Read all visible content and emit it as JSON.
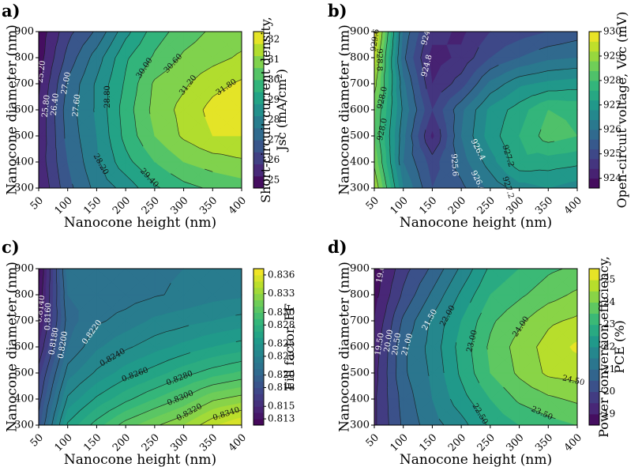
{
  "chart_data": [
    {
      "type": "contour",
      "panel": "a)",
      "xlabel": "Nanocone height (nm)",
      "ylabel": "Nanocone diameter (nm)",
      "x": [
        50,
        100,
        150,
        200,
        250,
        300,
        350,
        400
      ],
      "y": [
        300,
        400,
        500,
        600,
        700,
        800,
        900
      ],
      "xticks": [
        "50",
        "100",
        "150",
        "200",
        "250",
        "300",
        "350",
        "400"
      ],
      "yticks": [
        "300",
        "400",
        "500",
        "600",
        "700",
        "800",
        "900"
      ],
      "xlim": [
        50,
        400
      ],
      "ylim": [
        300,
        900
      ],
      "z": [
        [
          25.2,
          25.4,
          25.3,
          25.3,
          25.1,
          24.9,
          24.8
        ],
        [
          26.8,
          27.0,
          27.2,
          27.3,
          27.1,
          26.6,
          26.2
        ],
        [
          27.8,
          28.1,
          28.2,
          28.3,
          28.3,
          27.9,
          27.1
        ],
        [
          28.4,
          29.2,
          29.6,
          29.7,
          29.5,
          29.3,
          28.6
        ],
        [
          29.3,
          30.0,
          30.6,
          30.8,
          30.7,
          30.1,
          29.7
        ],
        [
          29.8,
          30.6,
          31.3,
          31.4,
          31.1,
          30.7,
          30.3
        ],
        [
          30.1,
          30.9,
          31.8,
          32.0,
          31.6,
          31.0,
          30.7
        ],
        [
          30.3,
          31.1,
          31.8,
          32.3,
          31.9,
          31.3,
          30.9
        ]
      ],
      "levels": [
        24.6,
        25.2,
        25.8,
        26.4,
        27.0,
        27.6,
        28.2,
        28.8,
        29.4,
        30.0,
        30.6,
        31.2,
        31.8,
        32.4
      ],
      "zmin": 24.6,
      "zmax": 32.4,
      "contour_labels": [
        "25.20",
        "25.80",
        "26.40",
        "27.00",
        "27.60",
        "28.20",
        "28.80",
        "29.40",
        "30.00",
        "30.60",
        "31.20",
        "31.80"
      ],
      "colorbar": {
        "label": "Short-circuit current density, Jsc (mA/cm²)",
        "label_lines": [
          "Short-circuit current density,",
          "Jsc (mA/cm²)"
        ],
        "ticks": [
          "25",
          "26",
          "27",
          "28",
          "29",
          "30",
          "31",
          "32"
        ],
        "tick_values": [
          25,
          26,
          27,
          28,
          29,
          30,
          31,
          32
        ]
      }
    },
    {
      "type": "contour",
      "panel": "b)",
      "xlabel": "Nanocone height (nm)",
      "ylabel": "Nanocone diameter (nm)",
      "x": [
        50,
        100,
        150,
        200,
        250,
        300,
        350,
        400
      ],
      "y": [
        300,
        400,
        500,
        600,
        700,
        800,
        900
      ],
      "xticks": [
        "50",
        "100",
        "150",
        "200",
        "250",
        "300",
        "350",
        "400"
      ],
      "yticks": [
        "300",
        "400",
        "500",
        "600",
        "700",
        "800",
        "900"
      ],
      "xlim": [
        50,
        400
      ],
      "ylim": [
        300,
        900
      ],
      "z": [
        [
          929.2,
          928.7,
          928.4,
          928.5,
          929.0,
          929.4,
          929.9
        ],
        [
          926.4,
          926.0,
          926.1,
          926.3,
          926.1,
          925.7,
          925.9
        ],
        [
          925.2,
          925.0,
          924.3,
          924.8,
          924.4,
          924.2,
          924.6
        ],
        [
          925.5,
          925.8,
          926.0,
          925.9,
          925.0,
          924.5,
          924.3
        ],
        [
          926.1,
          926.6,
          927.0,
          926.9,
          926.1,
          925.2,
          924.8
        ],
        [
          926.6,
          927.5,
          927.6,
          927.4,
          926.7,
          925.6,
          925.0
        ],
        [
          926.8,
          927.4,
          928.2,
          928.0,
          926.9,
          925.9,
          925.2
        ],
        [
          926.6,
          927.3,
          928.0,
          927.9,
          927.0,
          926.0,
          925.4
        ]
      ],
      "levels": [
        923.6,
        924.0,
        924.4,
        924.8,
        925.2,
        925.6,
        926.0,
        926.4,
        926.8,
        927.2,
        927.6,
        928.0,
        928.4,
        928.8,
        929.2,
        929.6,
        930.0
      ],
      "zmin": 923.6,
      "zmax": 930.0,
      "contour_labels": [
        "924.8",
        "924.8",
        "925.6",
        "926.4",
        "926.4",
        "927.2",
        "927.2",
        "928.0",
        "928.0",
        "928.8",
        "929.6",
        "925.6"
      ],
      "colorbar": {
        "label": "Open-circuit voltage, Voc (mV)",
        "label_lines": [
          "Open-circuit voltage, Voc (mV)"
        ],
        "ticks": [
          "924",
          "925",
          "926",
          "927",
          "928",
          "929",
          "930"
        ],
        "tick_values": [
          924,
          925,
          926,
          927,
          928,
          929,
          930
        ]
      }
    },
    {
      "type": "contour",
      "panel": "c)",
      "xlabel": "Nanocone height (nm)",
      "ylabel": "Nanocone diameter (nm)",
      "x": [
        50,
        100,
        150,
        200,
        250,
        300,
        350,
        400
      ],
      "y": [
        300,
        400,
        500,
        600,
        700,
        800,
        900
      ],
      "xticks": [
        "50",
        "100",
        "150",
        "200",
        "250",
        "300",
        "350",
        "400"
      ],
      "yticks": [
        "300",
        "400",
        "500",
        "600",
        "700",
        "800",
        "900"
      ],
      "xlim": [
        50,
        400
      ],
      "ylim": [
        300,
        900
      ],
      "z": [
        [
          0.8185,
          0.8175,
          0.8165,
          0.815,
          0.8138,
          0.813,
          0.8125
        ],
        [
          0.8262,
          0.8242,
          0.8225,
          0.821,
          0.8205,
          0.821,
          0.8215
        ],
        [
          0.8285,
          0.8262,
          0.8242,
          0.8228,
          0.8218,
          0.8213,
          0.8215
        ],
        [
          0.8305,
          0.8277,
          0.8255,
          0.8238,
          0.8224,
          0.8215,
          0.8215
        ],
        [
          0.8318,
          0.829,
          0.8265,
          0.8246,
          0.8232,
          0.8219,
          0.8218
        ],
        [
          0.833,
          0.8302,
          0.8276,
          0.8253,
          0.8236,
          0.8222,
          0.822
        ],
        [
          0.8348,
          0.8318,
          0.8285,
          0.826,
          0.824,
          0.8226,
          0.8222
        ],
        [
          0.836,
          0.8325,
          0.8292,
          0.8265,
          0.8244,
          0.8228,
          0.8225
        ]
      ],
      "levels": [
        0.812,
        0.813,
        0.814,
        0.815,
        0.816,
        0.817,
        0.818,
        0.819,
        0.82,
        0.821,
        0.822,
        0.823,
        0.824,
        0.825,
        0.826,
        0.827,
        0.828,
        0.829,
        0.83,
        0.831,
        0.832,
        0.833,
        0.834,
        0.835,
        0.836,
        0.837
      ],
      "zmin": 0.812,
      "zmax": 0.837,
      "contour_labels": [
        "0.8140",
        "0.8160",
        "0.8180",
        "0.8200",
        "0.8220",
        "0.8240",
        "0.8260",
        "0.8280",
        "0.8300",
        "0.8320",
        "0.8340"
      ],
      "colorbar": {
        "label": "Fill factor, FF",
        "label_lines": [
          "Fill factor, FF"
        ],
        "ticks": [
          "0.813",
          "0.815",
          "0.818",
          "0.820",
          "0.823",
          "0.825",
          "0.828",
          "0.830",
          "0.833",
          "0.836"
        ],
        "tick_values": [
          0.813,
          0.815,
          0.818,
          0.82,
          0.823,
          0.825,
          0.828,
          0.83,
          0.833,
          0.836
        ]
      }
    },
    {
      "type": "contour",
      "panel": "d)",
      "xlabel": "Nanocone height (nm)",
      "ylabel": "Nanocone diameter (nm)",
      "x": [
        50,
        100,
        150,
        200,
        250,
        300,
        350,
        400
      ],
      "y": [
        300,
        400,
        500,
        600,
        700,
        800,
        900
      ],
      "xticks": [
        "50",
        "100",
        "150",
        "200",
        "250",
        "300",
        "350",
        "400"
      ],
      "yticks": [
        "300",
        "400",
        "500",
        "600",
        "700",
        "800",
        "900"
      ],
      "xlim": [
        50,
        400
      ],
      "ylim": [
        300,
        900
      ],
      "z": [
        [
          19.4,
          19.4,
          19.3,
          19.2,
          19.0,
          18.8,
          18.7
        ],
        [
          20.6,
          20.7,
          20.9,
          20.9,
          20.6,
          20.1,
          19.8
        ],
        [
          21.3,
          21.5,
          21.6,
          21.7,
          21.6,
          21.1,
          20.6
        ],
        [
          21.8,
          22.3,
          22.6,
          22.7,
          22.5,
          22.1,
          21.6
        ],
        [
          22.6,
          23.0,
          23.5,
          23.6,
          23.4,
          23.0,
          22.6
        ],
        [
          23.0,
          23.6,
          24.1,
          24.2,
          23.9,
          23.4,
          23.0
        ],
        [
          23.3,
          23.9,
          24.6,
          24.7,
          24.4,
          23.8,
          23.4
        ],
        [
          23.5,
          24.1,
          24.7,
          25.1,
          24.6,
          24.1,
          23.6
        ]
      ],
      "levels": [
        18.5,
        19.0,
        19.5,
        20.0,
        20.5,
        21.0,
        21.5,
        22.0,
        22.5,
        23.0,
        23.5,
        24.0,
        24.5,
        25.0,
        25.5
      ],
      "zmin": 18.5,
      "zmax": 25.5,
      "contour_labels": [
        "19.00",
        "19.50",
        "20.00",
        "20.50",
        "21.00",
        "21.50",
        "22.00",
        "22.50",
        "23.00",
        "23.50",
        "24.00",
        "24.50"
      ],
      "colorbar": {
        "label": "Power conversion efficiency, PCE (%)",
        "label_lines": [
          "Power conversion efficiency,",
          "PCE (%)"
        ],
        "ticks": [
          "19",
          "20",
          "21",
          "22",
          "23",
          "24",
          "25"
        ],
        "tick_values": [
          19,
          20,
          21,
          22,
          23,
          24,
          25
        ]
      }
    }
  ]
}
